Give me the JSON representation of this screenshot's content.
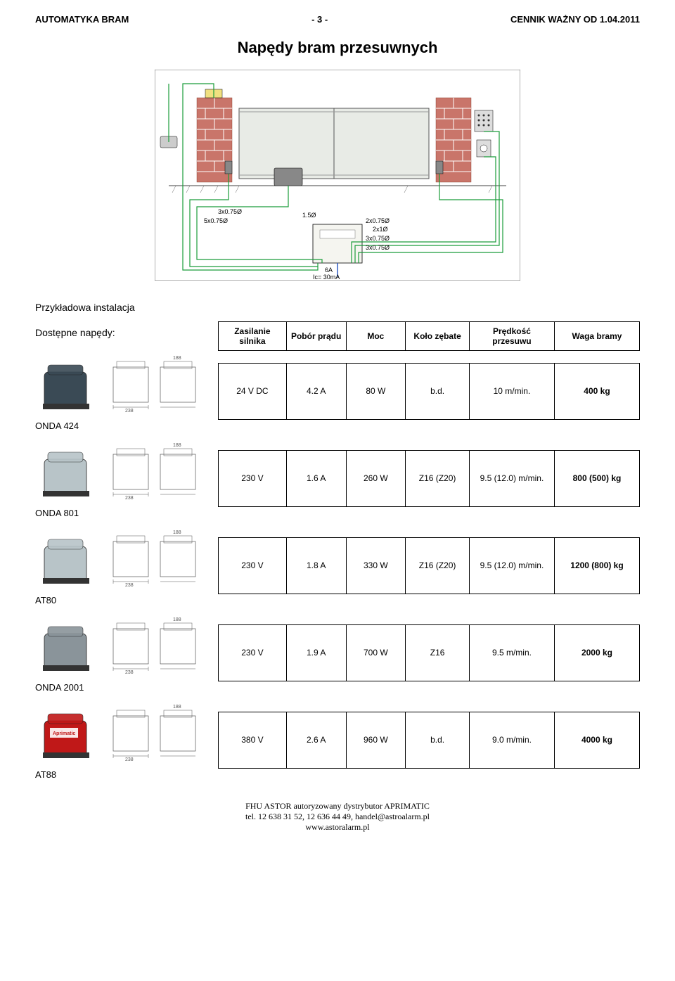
{
  "header": {
    "left": "AUTOMATYKA BRAM",
    "center": "- 3 -",
    "right": "CENNIK WAŻNY OD 1.04.2011"
  },
  "title": "Napędy bram przesuwnych",
  "installation_label": "Przykładowa instalacja",
  "available_label": "Dostępne napędy:",
  "columns": {
    "c1": "Zasilanie silnika",
    "c2": "Pobór prądu",
    "c3": "Moc",
    "c4": "Koło zębate",
    "c5": "Prędkość przesuwu",
    "c6": "Waga bramy"
  },
  "products": [
    {
      "name": "ONDA 424",
      "power": "24 V DC",
      "current": "4.2 A",
      "wattage": "80 W",
      "gear": "b.d.",
      "speed": "10 m/min.",
      "weight": "400 kg"
    },
    {
      "name": "ONDA 801",
      "power": "230 V",
      "current": "1.6 A",
      "wattage": "260 W",
      "gear": "Z16 (Z20)",
      "speed": "9.5 (12.0) m/min.",
      "weight": "800 (500) kg"
    },
    {
      "name": "AT80",
      "power": "230 V",
      "current": "1.8 A",
      "wattage": "330 W",
      "gear": "Z16 (Z20)",
      "speed": "9.5 (12.0) m/min.",
      "weight": "1200 (800) kg"
    },
    {
      "name": "ONDA 2001",
      "power": "230 V",
      "current": "1.9 A",
      "wattage": "700 W",
      "gear": "Z16",
      "speed": "9.5 m/min.",
      "weight": "2000 kg"
    },
    {
      "name": "AT88",
      "power": "380 V",
      "current": "2.6 A",
      "wattage": "960 W",
      "gear": "b.d.",
      "speed": "9.0 m/min.",
      "weight": "4000 kg"
    }
  ],
  "diagram": {
    "wire_labels": [
      "3x0.75Ø",
      "5x0.75Ø",
      "1.5Ø",
      "2x0.75Ø",
      "2x1Ø",
      "3x0.75Ø",
      "3x0.75Ø",
      "6A Ic= 30mA"
    ],
    "colors": {
      "wall": "#c9756a",
      "gate_fill": "#e8ebe6",
      "wire_green": "#1a9c3a",
      "wire_blue": "#2050c0",
      "sensor": "#888888",
      "controller": "#f5f5f0"
    }
  },
  "footer": {
    "line1": "FHU ASTOR  autoryzowany dystrybutor APRIMATIC",
    "line2": "tel. 12 638 31 52, 12 636 44 49, handel@astroalarm.pl",
    "line3": "www.astoralarm.pl"
  },
  "product_colors": [
    "#3a4a55",
    "#b8c4c8",
    "#b8c4c8",
    "#8a949a",
    "#c01818"
  ]
}
